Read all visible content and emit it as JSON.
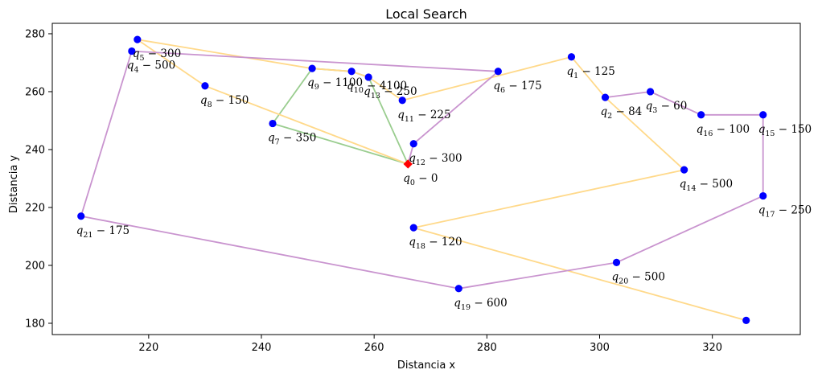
{
  "chart_data": {
    "type": "scatter",
    "title": "Local Search",
    "xlabel": "Distancia x",
    "ylabel": "Distancia y",
    "xlim": [
      202.9,
      335.6
    ],
    "ylim": [
      176.1,
      283.6
    ],
    "x_ticks": [
      220,
      240,
      260,
      280,
      300,
      320
    ],
    "y_ticks": [
      180,
      200,
      220,
      240,
      260,
      280
    ],
    "depot": {
      "id": 0,
      "demand": 0,
      "x": 266,
      "y": 235,
      "color": "#ff0000"
    },
    "point_color": "#0000ff",
    "points": [
      {
        "id": 0,
        "demand": 0,
        "x": 266,
        "y": 235
      },
      {
        "id": 1,
        "demand": 125,
        "x": 295,
        "y": 272
      },
      {
        "id": 2,
        "demand": 84,
        "x": 301,
        "y": 258
      },
      {
        "id": 3,
        "demand": 60,
        "x": 309,
        "y": 260
      },
      {
        "id": 4,
        "demand": 500,
        "x": 217,
        "y": 274
      },
      {
        "id": 5,
        "demand": 300,
        "x": 218,
        "y": 278
      },
      {
        "id": 6,
        "demand": 175,
        "x": 282,
        "y": 267
      },
      {
        "id": 7,
        "demand": 350,
        "x": 242,
        "y": 249
      },
      {
        "id": 8,
        "demand": 150,
        "x": 230,
        "y": 262
      },
      {
        "id": 9,
        "demand": 1100,
        "x": 249,
        "y": 268
      },
      {
        "id": 10,
        "demand": 4100,
        "x": 256,
        "y": 267
      },
      {
        "id": 11,
        "demand": 225,
        "x": 265,
        "y": 257
      },
      {
        "id": 12,
        "demand": 300,
        "x": 267,
        "y": 242
      },
      {
        "id": 13,
        "demand": 250,
        "x": 259,
        "y": 265
      },
      {
        "id": 14,
        "demand": 500,
        "x": 315,
        "y": 233
      },
      {
        "id": 15,
        "demand": 150,
        "x": 329,
        "y": 252
      },
      {
        "id": 16,
        "demand": 100,
        "x": 318,
        "y": 252
      },
      {
        "id": 17,
        "demand": 250,
        "x": 329,
        "y": 224
      },
      {
        "id": 18,
        "demand": 120,
        "x": 267,
        "y": 213
      },
      {
        "id": 19,
        "demand": 600,
        "x": 275,
        "y": 192
      },
      {
        "id": 20,
        "demand": 500,
        "x": 303,
        "y": 201
      },
      {
        "id": 21,
        "demand": 175,
        "x": 208,
        "y": 217
      },
      {
        "id": 22,
        "demand": null,
        "x": 326,
        "y": 181
      }
    ],
    "routes": [
      {
        "name": "route-green",
        "color": "#9acd8f",
        "path": [
          0,
          7,
          9,
          10,
          13,
          0
        ]
      },
      {
        "name": "route-orange",
        "color": "#ffd98a",
        "path": [
          0,
          8,
          5,
          9,
          10,
          13,
          11,
          1,
          2,
          14,
          18,
          22
        ]
      },
      {
        "name": "route-purple",
        "color": "#c994cf",
        "path": [
          0,
          12,
          6,
          4,
          21,
          19,
          20,
          17,
          15,
          16,
          3,
          2
        ]
      }
    ]
  }
}
